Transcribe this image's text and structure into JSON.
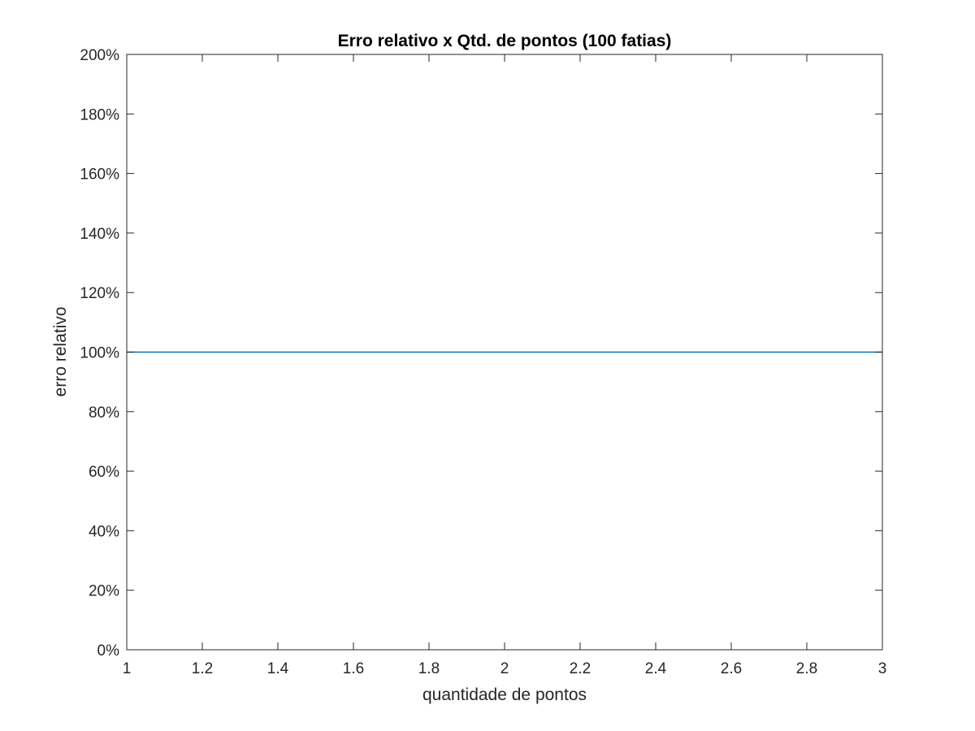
{
  "chart_data": {
    "type": "line",
    "title": "Erro relativo x Qtd. de pontos (100 fatias)",
    "xlabel": "quantidade de pontos",
    "ylabel": "erro relativo",
    "xlim": [
      1,
      3
    ],
    "ylim": [
      0,
      200
    ],
    "x_ticks": [
      "1",
      "1.2",
      "1.4",
      "1.6",
      "1.8",
      "2",
      "2.2",
      "2.4",
      "2.6",
      "2.8",
      "3"
    ],
    "y_ticks": [
      "0%",
      "20%",
      "40%",
      "60%",
      "80%",
      "100%",
      "120%",
      "140%",
      "160%",
      "180%",
      "200%"
    ],
    "grid": false,
    "series": [
      {
        "x": [
          1,
          3
        ],
        "y": [
          100,
          100
        ],
        "color": "#0072BD"
      }
    ]
  }
}
